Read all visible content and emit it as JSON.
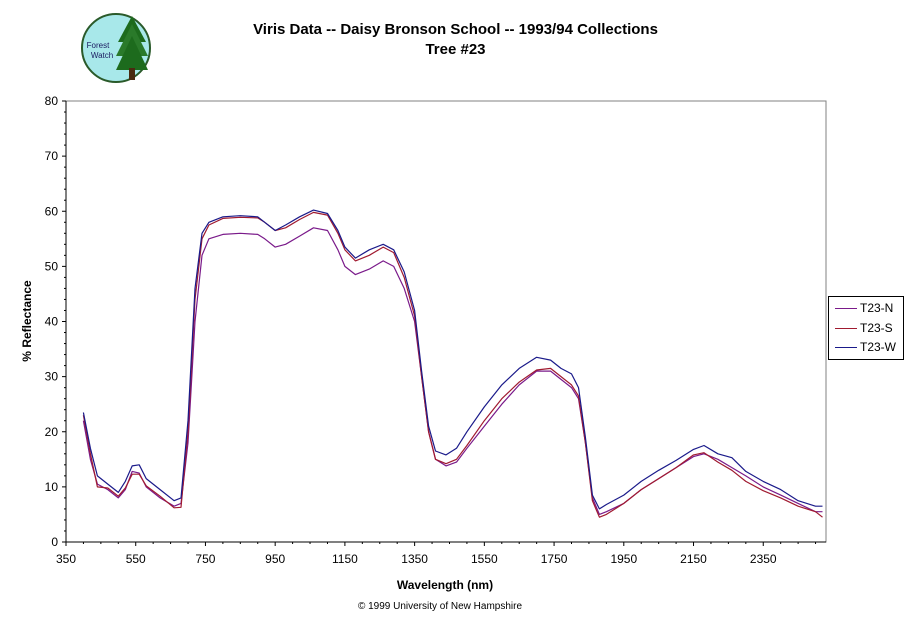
{
  "header": {
    "title": "Viris Data -- Daisy Bronson School -- 1993/94 Collections",
    "subtitle": "Tree #23",
    "logo_text_line1": "Forest",
    "logo_text_line2": "Watch"
  },
  "footer": {
    "copyright": "© 1999 University of New Hampshire"
  },
  "colors": {
    "T23-N": "#7a1a8a",
    "T23-S": "#a01a30",
    "T23-W": "#1a1a8a",
    "logo_bg": "#a8e8ea"
  },
  "chart_data": {
    "type": "line",
    "title": "Viris Data -- Daisy Bronson School -- 1993/94 Collections",
    "subtitle": "Tree #23",
    "xlabel": "Wavelength (nm)",
    "ylabel": "% Reflectance",
    "xlim": [
      350,
      2530
    ],
    "ylim": [
      0,
      80
    ],
    "xticks": [
      350,
      550,
      750,
      950,
      1150,
      1350,
      1550,
      1750,
      1950,
      2150,
      2350
    ],
    "yticks": [
      0,
      10,
      20,
      30,
      40,
      50,
      60,
      70,
      80
    ],
    "grid": false,
    "legend_position": "right",
    "x": [
      400,
      420,
      440,
      470,
      500,
      520,
      540,
      560,
      580,
      620,
      660,
      680,
      700,
      720,
      740,
      760,
      800,
      850,
      900,
      920,
      950,
      980,
      1020,
      1060,
      1100,
      1130,
      1150,
      1180,
      1220,
      1260,
      1290,
      1320,
      1350,
      1370,
      1390,
      1410,
      1440,
      1470,
      1500,
      1550,
      1600,
      1650,
      1700,
      1740,
      1770,
      1800,
      1820,
      1840,
      1860,
      1880,
      1900,
      1950,
      2000,
      2050,
      2100,
      2150,
      2180,
      2220,
      2260,
      2300,
      2350,
      2400,
      2450,
      2500,
      2520
    ],
    "series": [
      {
        "name": "T23-N",
        "values": [
          22,
          15,
          10.5,
          9.5,
          8,
          9.5,
          12.8,
          12.5,
          10,
          8,
          6.5,
          7,
          18,
          40,
          52,
          55,
          55.8,
          56,
          55.8,
          55,
          53.5,
          54,
          55.5,
          57,
          56.5,
          53,
          50,
          48.5,
          49.5,
          51,
          50,
          46,
          40,
          30,
          20,
          15,
          13.8,
          14.5,
          17,
          21,
          25,
          28.5,
          31,
          31,
          29.5,
          28,
          26,
          18,
          8,
          5,
          5.5,
          7,
          9.5,
          11.5,
          13.5,
          15.5,
          16,
          15,
          13.5,
          12,
          10,
          8.5,
          7,
          5.5,
          5.5
        ]
      },
      {
        "name": "T23-S",
        "values": [
          23,
          16,
          10,
          9.8,
          8.3,
          9.8,
          12.3,
          12.3,
          10.2,
          8.3,
          6.2,
          6.3,
          20,
          44,
          55,
          57.5,
          58.7,
          58.9,
          58.8,
          58,
          56.5,
          57,
          58.5,
          59.8,
          59.3,
          56,
          53,
          51,
          52,
          53.5,
          52.5,
          48,
          41,
          30,
          20,
          15,
          14.2,
          15,
          17.5,
          22,
          26,
          29,
          31.2,
          31.5,
          30,
          28.5,
          26.5,
          18,
          7.5,
          4.5,
          5,
          7,
          9.5,
          11.5,
          13.5,
          15.8,
          16.2,
          14.5,
          13,
          11,
          9.3,
          8,
          6.5,
          5.5,
          4.5
        ]
      },
      {
        "name": "T23-W",
        "values": [
          23.5,
          17,
          12,
          10.5,
          9,
          11,
          13.8,
          14,
          11.5,
          9.5,
          7.5,
          8,
          22,
          46,
          56,
          58,
          59,
          59.2,
          59,
          58,
          56.5,
          57.5,
          59,
          60.2,
          59.6,
          56.5,
          53.5,
          51.5,
          53,
          54,
          53,
          49,
          42,
          31,
          21,
          16.5,
          15.8,
          17,
          20,
          24.5,
          28.5,
          31.5,
          33.5,
          33,
          31.5,
          30.5,
          28,
          19,
          8.5,
          6,
          6.8,
          8.5,
          11,
          13,
          14.8,
          16.8,
          17.5,
          16,
          15.3,
          12.8,
          11,
          9.5,
          7.5,
          6.5,
          6.5
        ]
      }
    ]
  }
}
